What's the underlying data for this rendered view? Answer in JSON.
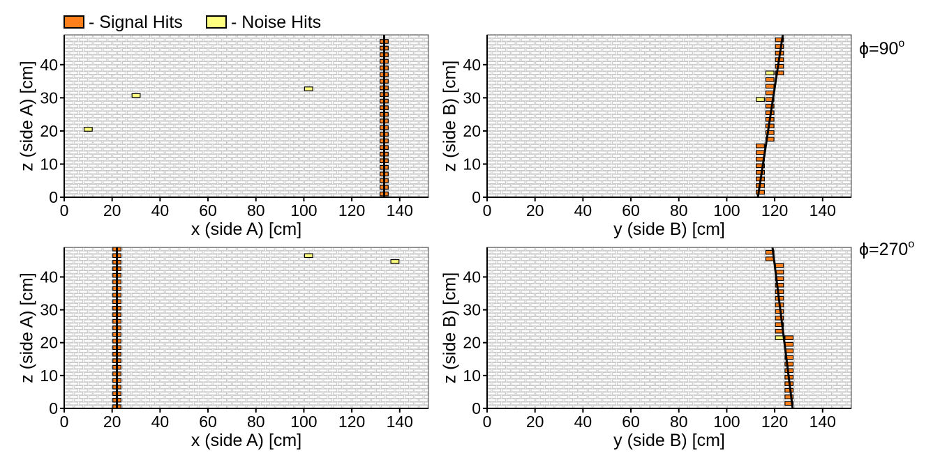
{
  "legend": {
    "signal_label": "- Signal Hits",
    "noise_label": "- Noise Hits"
  },
  "colors": {
    "signal": "#ff7f1a",
    "noise": "#ffff80",
    "grid_cell": "#c8c8c8",
    "track": "#000000"
  },
  "angles": {
    "phi90": "ϕ=90",
    "phi270": "ϕ=270",
    "degree": "o"
  },
  "chart_data": [
    {
      "id": "p90a",
      "type": "scatter",
      "xlabel": "x (side A) [cm]",
      "ylabel": "z (side A) [cm]",
      "xlim": [
        0,
        152
      ],
      "ylim": [
        0,
        49
      ],
      "xticks": [
        0,
        20,
        40,
        60,
        80,
        100,
        120,
        140
      ],
      "yticks": [
        0,
        10,
        20,
        30,
        40
      ],
      "signal_hits": [
        [
          133.5,
          1
        ],
        [
          133.5,
          3
        ],
        [
          133.5,
          5
        ],
        [
          133.5,
          7
        ],
        [
          133.5,
          9
        ],
        [
          133.5,
          11
        ],
        [
          133.5,
          13
        ],
        [
          133.5,
          15
        ],
        [
          133.5,
          17
        ],
        [
          133.5,
          19
        ],
        [
          133.5,
          21
        ],
        [
          133.5,
          23
        ],
        [
          133.5,
          25
        ],
        [
          133.5,
          27
        ],
        [
          133.5,
          29
        ],
        [
          133.5,
          31
        ],
        [
          133.5,
          33
        ],
        [
          133.5,
          35
        ],
        [
          133.5,
          37
        ],
        [
          133.5,
          39
        ],
        [
          133.5,
          41
        ],
        [
          133.5,
          43
        ],
        [
          133.5,
          45
        ],
        [
          133.5,
          47
        ]
      ],
      "noise_hits": [
        [
          10,
          20.5
        ],
        [
          30,
          30.7
        ],
        [
          102,
          32.7
        ]
      ],
      "track": [
        [
          133.5,
          0
        ],
        [
          133.5,
          49
        ]
      ]
    },
    {
      "id": "p90b",
      "type": "scatter",
      "xlabel": "y (side B) [cm]",
      "ylabel": "z (side B) [cm]",
      "xlim": [
        0,
        152
      ],
      "ylim": [
        0,
        49
      ],
      "xticks": [
        0,
        20,
        40,
        60,
        80,
        100,
        120,
        140
      ],
      "yticks": [
        0,
        10,
        20,
        30,
        40
      ],
      "signal_hits": [
        [
          114,
          1.5
        ],
        [
          114,
          3.5
        ],
        [
          114,
          5.5
        ],
        [
          114,
          7.5
        ],
        [
          114,
          9.5
        ],
        [
          114,
          11.5
        ],
        [
          114,
          13.5
        ],
        [
          114,
          15.5
        ],
        [
          118,
          17.5
        ],
        [
          118,
          19.5
        ],
        [
          118,
          21.5
        ],
        [
          118,
          23.5
        ],
        [
          118,
          25.5
        ],
        [
          118,
          27.5
        ],
        [
          118,
          29.5
        ],
        [
          118,
          31.5
        ],
        [
          118,
          33.5
        ],
        [
          118,
          35.5
        ],
        [
          122,
          37.5
        ],
        [
          122,
          39.5
        ],
        [
          122,
          41.5
        ],
        [
          122,
          43.5
        ],
        [
          122,
          45.5
        ],
        [
          122,
          47.5
        ]
      ],
      "noise_hits": [
        [
          118,
          37.5
        ],
        [
          114,
          29.5
        ]
      ],
      "track": [
        [
          113,
          0
        ],
        [
          123.5,
          49.5
        ]
      ]
    },
    {
      "id": "p270a",
      "type": "scatter",
      "xlabel": "x (side A) [cm]",
      "ylabel": "z (side A) [cm]",
      "xlim": [
        0,
        152
      ],
      "ylim": [
        0,
        49
      ],
      "xticks": [
        0,
        20,
        40,
        60,
        80,
        100,
        120,
        140
      ],
      "yticks": [
        0,
        10,
        20,
        30,
        40
      ],
      "signal_hits": [
        [
          22,
          0.5
        ],
        [
          22,
          2.5
        ],
        [
          22,
          4.5
        ],
        [
          22,
          6.5
        ],
        [
          22,
          8.5
        ],
        [
          22,
          10.5
        ],
        [
          22,
          12.5
        ],
        [
          22,
          14.5
        ],
        [
          22,
          16.5
        ],
        [
          22,
          18.5
        ],
        [
          22,
          20.5
        ],
        [
          22,
          22.5
        ],
        [
          22,
          24.5
        ],
        [
          22,
          26.5
        ],
        [
          22,
          28.5
        ],
        [
          22,
          30.5
        ],
        [
          22,
          32.5
        ],
        [
          22,
          34.5
        ],
        [
          22,
          36.5
        ],
        [
          22,
          38.5
        ],
        [
          22,
          40.5
        ],
        [
          22,
          42.5
        ],
        [
          22,
          44.5
        ],
        [
          22,
          46.5
        ],
        [
          22,
          48.5
        ]
      ],
      "noise_hits": [
        [
          102,
          46.5
        ],
        [
          138,
          44.7
        ]
      ],
      "track": [
        [
          22,
          0
        ],
        [
          22,
          49
        ]
      ]
    },
    {
      "id": "p270b",
      "type": "scatter",
      "xlabel": "y (side B) [cm]",
      "ylabel": "z (side B) [cm]",
      "xlim": [
        0,
        152
      ],
      "ylim": [
        0,
        49
      ],
      "xticks": [
        0,
        20,
        40,
        60,
        80,
        100,
        120,
        140
      ],
      "yticks": [
        0,
        10,
        20,
        30,
        40
      ],
      "signal_hits": [
        [
          126,
          1.5
        ],
        [
          126,
          3.5
        ],
        [
          126,
          5.5
        ],
        [
          126,
          7.5
        ],
        [
          126,
          9.5
        ],
        [
          126,
          11.5
        ],
        [
          126,
          13.5
        ],
        [
          126,
          15.5
        ],
        [
          126,
          17.5
        ],
        [
          126,
          19.5
        ],
        [
          126,
          21.5
        ],
        [
          122,
          23.5
        ],
        [
          122,
          25.5
        ],
        [
          122,
          27.5
        ],
        [
          122,
          29.5
        ],
        [
          122,
          31.5
        ],
        [
          122,
          33.5
        ],
        [
          122,
          35.5
        ],
        [
          122,
          37.5
        ],
        [
          122,
          39.5
        ],
        [
          122,
          41.5
        ],
        [
          122,
          43.5
        ],
        [
          118,
          45.5
        ],
        [
          118,
          47.5
        ]
      ],
      "noise_hits": [
        [
          122,
          21.5
        ]
      ],
      "track": [
        [
          127.5,
          0
        ],
        [
          119,
          49.5
        ]
      ]
    }
  ]
}
